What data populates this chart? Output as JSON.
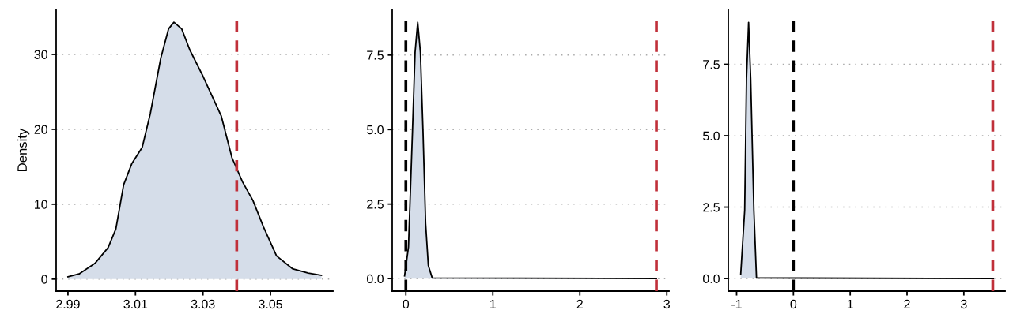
{
  "chart_data": [
    {
      "type": "area",
      "ylabel": "Density",
      "xlim": [
        2.9865,
        3.0685
      ],
      "xticks": [
        {
          "value": 2.99,
          "label": "2.99"
        },
        {
          "value": 3.01,
          "label": "3.01"
        },
        {
          "value": 3.03,
          "label": "3.03"
        },
        {
          "value": 3.05,
          "label": "3.05"
        }
      ],
      "ylim": [
        -1.6,
        36
      ],
      "yticks": [
        0,
        10,
        20,
        30
      ],
      "grid": "y",
      "series": [
        {
          "color": "#d5dde9",
          "x": [
            2.99,
            2.9933,
            2.998,
            3.0019,
            3.0042,
            3.0065,
            3.0089,
            3.012,
            3.0144,
            3.0175,
            3.0198,
            3.0214,
            3.0237,
            3.0261,
            3.03,
            3.0354,
            3.0386,
            3.0417,
            3.0448,
            3.0479,
            3.0518,
            3.0565,
            3.0612,
            3.0651
          ],
          "values": [
            0.3,
            0.7,
            2.1,
            4.2,
            6.7,
            12.6,
            15.4,
            17.6,
            22.1,
            29.5,
            33.4,
            34.3,
            33.4,
            30.6,
            27.1,
            21.8,
            16.2,
            13.0,
            10.5,
            7.0,
            3.1,
            1.4,
            0.8,
            0.5
          ]
        }
      ],
      "ref_lines": [
        {
          "axis": "x",
          "value": 3.04,
          "color": "#c0303a",
          "line_style": "dashed"
        }
      ]
    },
    {
      "type": "area",
      "xlim": [
        -0.157,
        3.025
      ],
      "xticks": [
        0,
        1,
        2,
        3
      ],
      "ylim": [
        -0.42,
        9.03
      ],
      "yticks": [
        {
          "value": 0,
          "label": "0.0"
        },
        {
          "value": 2.5,
          "label": "2.5"
        },
        {
          "value": 5,
          "label": "5.0"
        },
        {
          "value": 7.5,
          "label": "7.5"
        }
      ],
      "grid": "y",
      "series": [
        {
          "color": "#d5dde9",
          "x": [
            -0.015,
            0.03,
            0.076,
            0.106,
            0.136,
            0.167,
            0.197,
            0.227,
            0.258,
            0.303,
            2.88
          ],
          "values": [
            0.09,
            1.06,
            4.94,
            7.59,
            8.6,
            7.59,
            4.94,
            1.85,
            0.44,
            0.02,
            0
          ]
        }
      ],
      "ref_lines": [
        {
          "axis": "x",
          "value": 0,
          "color": "#000000",
          "line_style": "dashed"
        },
        {
          "axis": "x",
          "value": 2.88,
          "color": "#c0303a",
          "line_style": "dashed"
        }
      ]
    },
    {
      "type": "area",
      "xlim": [
        -1.146,
        3.726
      ],
      "xticks": [
        {
          "value": -1,
          "label": "-1"
        },
        0,
        1,
        2,
        3
      ],
      "ylim": [
        -0.44,
        9.42
      ],
      "yticks": [
        {
          "value": 0,
          "label": "0.0"
        },
        {
          "value": 2.5,
          "label": "2.5"
        },
        {
          "value": 5,
          "label": "5.0"
        },
        {
          "value": 7.5,
          "label": "7.5"
        }
      ],
      "grid": "y",
      "series": [
        {
          "color": "#d5dde9",
          "x": [
            -0.928,
            -0.858,
            -0.826,
            -0.789,
            -0.752,
            -0.696,
            -0.65,
            3.52
          ],
          "values": [
            0.14,
            2.39,
            6.99,
            8.97,
            6.99,
            2.39,
            0.02,
            0
          ]
        }
      ],
      "ref_lines": [
        {
          "axis": "x",
          "value": 0,
          "color": "#000000",
          "line_style": "dashed"
        },
        {
          "axis": "x",
          "value": 3.51,
          "color": "#c0303a",
          "line_style": "dashed"
        }
      ]
    }
  ]
}
